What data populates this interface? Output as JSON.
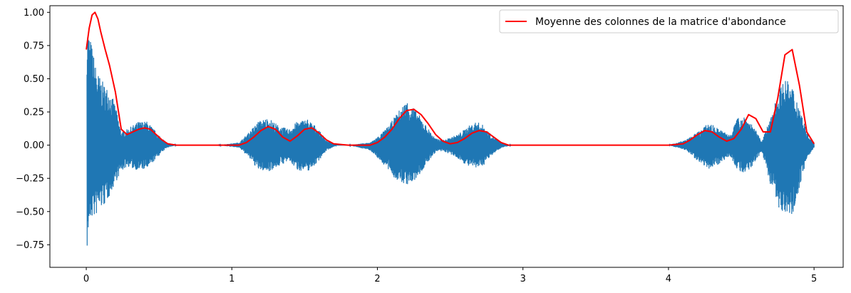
{
  "chart_data": {
    "type": "line",
    "title": "",
    "xlabel": "",
    "ylabel": "",
    "xlim": [
      -0.25,
      5.2
    ],
    "ylim": [
      -0.92,
      1.05
    ],
    "xticks": [
      0,
      1,
      2,
      3,
      4,
      5
    ],
    "yticks": [
      -0.75,
      -0.5,
      -0.25,
      0.0,
      0.25,
      0.5,
      0.75,
      1.0
    ],
    "ytick_labels": [
      "−0.75",
      "−0.50",
      "−0.25",
      "0.00",
      "0.25",
      "0.50",
      "0.75",
      "1.00"
    ],
    "xtick_labels": [
      "0",
      "1",
      "2",
      "3",
      "4",
      "5"
    ],
    "grid": false,
    "legend": {
      "placement": "top-right"
    },
    "series": [
      {
        "color": "#1f77b4",
        "kind": "oscillating-signal",
        "envelope": {
          "x": [
            0,
            0.02,
            0.04,
            0.06,
            0.08,
            0.1,
            0.13,
            0.16,
            0.2,
            0.24,
            0.28,
            0.32,
            0.36,
            0.42,
            0.48,
            0.55,
            0.62,
            0.9,
            1.05,
            1.12,
            1.18,
            1.25,
            1.32,
            1.39,
            1.45,
            1.52,
            1.58,
            1.65,
            1.72,
            1.8,
            1.95,
            2.02,
            2.08,
            2.14,
            2.2,
            2.24,
            2.28,
            2.34,
            2.4,
            2.46,
            2.55,
            2.62,
            2.68,
            2.73,
            2.78,
            2.85,
            2.92,
            3.0,
            4.0,
            4.12,
            4.2,
            4.28,
            4.35,
            4.42,
            4.47,
            4.52,
            4.58,
            4.64,
            4.7,
            4.75,
            4.8,
            4.85,
            4.9,
            4.95,
            5.0
          ],
          "upper": [
            1.0,
            0.85,
            0.75,
            0.62,
            0.55,
            0.5,
            0.45,
            0.42,
            0.3,
            0.1,
            0.12,
            0.15,
            0.18,
            0.18,
            0.1,
            0.02,
            0.0,
            0.0,
            0.02,
            0.1,
            0.18,
            0.21,
            0.15,
            0.12,
            0.18,
            0.2,
            0.14,
            0.04,
            0.0,
            0.0,
            0.02,
            0.08,
            0.15,
            0.25,
            0.34,
            0.3,
            0.24,
            0.14,
            0.05,
            0.04,
            0.08,
            0.14,
            0.18,
            0.15,
            0.08,
            0.02,
            0.0,
            0.0,
            0.0,
            0.04,
            0.1,
            0.17,
            0.12,
            0.08,
            0.2,
            0.23,
            0.15,
            0.03,
            0.2,
            0.4,
            0.5,
            0.45,
            0.3,
            0.1,
            0.02
          ],
          "lower": [
            -0.84,
            -0.6,
            -0.55,
            -0.55,
            -0.5,
            -0.48,
            -0.45,
            -0.38,
            -0.28,
            -0.2,
            -0.16,
            -0.18,
            -0.19,
            -0.18,
            -0.1,
            -0.02,
            0.0,
            0.0,
            -0.02,
            -0.1,
            -0.19,
            -0.2,
            -0.16,
            -0.12,
            -0.19,
            -0.2,
            -0.14,
            -0.04,
            0.0,
            0.0,
            -0.04,
            -0.12,
            -0.2,
            -0.28,
            -0.3,
            -0.29,
            -0.24,
            -0.14,
            -0.05,
            -0.05,
            -0.1,
            -0.16,
            -0.18,
            -0.15,
            -0.08,
            -0.02,
            0.0,
            0.0,
            0.0,
            -0.04,
            -0.12,
            -0.18,
            -0.14,
            -0.08,
            -0.18,
            -0.23,
            -0.15,
            -0.05,
            -0.3,
            -0.5,
            -0.5,
            -0.52,
            -0.32,
            -0.1,
            -0.02
          ]
        }
      },
      {
        "name": "Moyenne des colonnes de la matrice d'abondance",
        "color": "#ff0000",
        "x": [
          0,
          0.02,
          0.04,
          0.06,
          0.08,
          0.1,
          0.13,
          0.16,
          0.2,
          0.24,
          0.28,
          0.32,
          0.36,
          0.4,
          0.44,
          0.48,
          0.52,
          0.56,
          0.62,
          0.9,
          1.05,
          1.1,
          1.15,
          1.2,
          1.25,
          1.3,
          1.35,
          1.4,
          1.45,
          1.5,
          1.55,
          1.6,
          1.65,
          1.7,
          1.8,
          1.95,
          2.0,
          2.05,
          2.1,
          2.15,
          2.2,
          2.25,
          2.3,
          2.35,
          2.4,
          2.45,
          2.5,
          2.55,
          2.6,
          2.65,
          2.7,
          2.75,
          2.8,
          2.85,
          2.9,
          3.0,
          4.0,
          4.1,
          4.15,
          4.2,
          4.25,
          4.3,
          4.35,
          4.4,
          4.45,
          4.5,
          4.55,
          4.6,
          4.65,
          4.7,
          4.75,
          4.8,
          4.85,
          4.9,
          4.95,
          5.0
        ],
        "y": [
          0.72,
          0.88,
          0.98,
          1.0,
          0.95,
          0.85,
          0.72,
          0.6,
          0.4,
          0.12,
          0.08,
          0.1,
          0.12,
          0.13,
          0.12,
          0.08,
          0.04,
          0.01,
          0.0,
          0.0,
          0.0,
          0.02,
          0.06,
          0.11,
          0.14,
          0.12,
          0.06,
          0.03,
          0.07,
          0.12,
          0.13,
          0.09,
          0.04,
          0.01,
          0.0,
          0.0,
          0.02,
          0.06,
          0.12,
          0.2,
          0.26,
          0.27,
          0.23,
          0.16,
          0.08,
          0.03,
          0.01,
          0.02,
          0.05,
          0.09,
          0.11,
          0.1,
          0.06,
          0.02,
          0.0,
          0.0,
          0.0,
          0.01,
          0.04,
          0.08,
          0.11,
          0.1,
          0.06,
          0.03,
          0.05,
          0.12,
          0.23,
          0.2,
          0.1,
          0.1,
          0.35,
          0.68,
          0.72,
          0.45,
          0.1,
          0.01
        ]
      }
    ]
  }
}
